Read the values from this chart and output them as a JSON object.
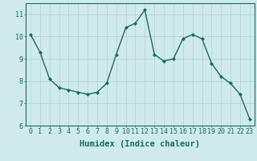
{
  "x": [
    0,
    1,
    2,
    3,
    4,
    5,
    6,
    7,
    8,
    9,
    10,
    11,
    12,
    13,
    14,
    15,
    16,
    17,
    18,
    19,
    20,
    21,
    22,
    23
  ],
  "y": [
    10.1,
    9.3,
    8.1,
    7.7,
    7.6,
    7.5,
    7.4,
    7.5,
    7.9,
    9.2,
    10.4,
    10.6,
    11.2,
    9.2,
    8.9,
    9.0,
    9.9,
    10.1,
    9.9,
    8.8,
    8.2,
    7.9,
    7.4,
    6.3
  ],
  "line_color": "#1a6b5a",
  "marker": "D",
  "marker_size": 2.0,
  "bg_color": "#ceeaec",
  "grid_color": "#b0d0d5",
  "xlabel": "Humidex (Indice chaleur)",
  "xlim": [
    -0.5,
    23.5
  ],
  "ylim": [
    6,
    11.5
  ],
  "yticks": [
    6,
    7,
    8,
    9,
    10,
    11
  ],
  "xticks": [
    0,
    1,
    2,
    3,
    4,
    5,
    6,
    7,
    8,
    9,
    10,
    11,
    12,
    13,
    14,
    15,
    16,
    17,
    18,
    19,
    20,
    21,
    22,
    23
  ],
  "tick_label_fontsize": 6,
  "xlabel_fontsize": 7.5,
  "line_width": 1.0
}
